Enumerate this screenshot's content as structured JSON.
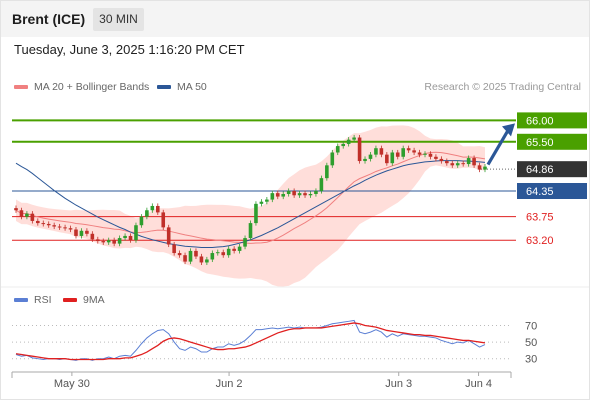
{
  "header": {
    "title": "Brent (ICE)",
    "timeframe": "30 MIN"
  },
  "datetime": "Tuesday, June 3, 2025 1:16:20 PM CET",
  "legend": {
    "ma20": {
      "label": "MA 20 + Bollinger Bands",
      "color": "#f08080"
    },
    "ma50": {
      "label": "MA 50",
      "color": "#2b5797"
    },
    "credit": "Research © 2025 Trading Central"
  },
  "rsi_legend": {
    "rsi": {
      "label": "RSI",
      "color": "#5b7fd4"
    },
    "ma9": {
      "label": "9MA",
      "color": "#e02020"
    }
  },
  "chart_data": [
    {
      "type": "candlestick",
      "ylim": [
        62.2,
        66.5
      ],
      "current_price": 64.86,
      "levels": [
        {
          "value": 66.0,
          "label": "66.00",
          "color": "#4aa000",
          "kind": "resistance"
        },
        {
          "value": 65.5,
          "label": "65.50",
          "color": "#4aa000",
          "kind": "resistance"
        },
        {
          "value": 64.86,
          "label": "64.86",
          "color": "#333333",
          "kind": "current"
        },
        {
          "value": 64.35,
          "label": "64.35",
          "color": "#2b5797",
          "kind": "pivot"
        },
        {
          "value": 63.75,
          "label": "63.75",
          "color": "#e02020",
          "kind": "support"
        },
        {
          "value": 63.2,
          "label": "63.20",
          "color": "#e02020",
          "kind": "support"
        }
      ],
      "colors": {
        "up": "#2e9e2e",
        "down": "#c0302a",
        "band": "#ffd8d4"
      },
      "close": [
        63.9,
        63.75,
        63.82,
        63.65,
        63.6,
        63.58,
        63.55,
        63.52,
        63.5,
        63.48,
        63.45,
        63.3,
        63.42,
        63.35,
        63.22,
        63.18,
        63.15,
        63.2,
        63.12,
        63.25,
        63.3,
        63.2,
        63.55,
        63.75,
        63.9,
        64.0,
        63.85,
        63.5,
        63.1,
        62.9,
        62.85,
        62.7,
        62.95,
        62.82,
        62.68,
        62.75,
        62.9,
        62.92,
        62.85,
        63.0,
        62.95,
        63.05,
        63.25,
        63.6,
        64.05,
        64.1,
        64.15,
        64.3,
        64.22,
        64.28,
        64.35,
        64.25,
        64.3,
        64.25,
        64.28,
        64.35,
        64.65,
        64.95,
        65.25,
        65.4,
        65.45,
        65.55,
        65.6,
        65.05,
        65.1,
        65.2,
        65.35,
        65.2,
        65.0,
        65.25,
        65.15,
        65.35,
        65.3,
        65.25,
        65.2,
        65.22,
        65.15,
        65.1,
        65.05,
        65.0,
        64.95,
        65.0,
        64.98,
        65.12,
        64.95,
        64.85,
        64.92
      ],
      "ma50": [
        65.0,
        64.92,
        64.85,
        64.76,
        64.66,
        64.56,
        64.46,
        64.36,
        64.27,
        64.18,
        64.1,
        64.02,
        63.95,
        63.88,
        63.81,
        63.74,
        63.68,
        63.62,
        63.56,
        63.5,
        63.45,
        63.39,
        63.34,
        63.29,
        63.25,
        63.21,
        63.18,
        63.15,
        63.12,
        63.1,
        63.08,
        63.06,
        63.05,
        63.04,
        63.03,
        63.03,
        63.03,
        63.04,
        63.05,
        63.07,
        63.1,
        63.13,
        63.17,
        63.21,
        63.26,
        63.31,
        63.37,
        63.43,
        63.49,
        63.56,
        63.63,
        63.7,
        63.77,
        63.84,
        63.91,
        63.98,
        64.05,
        64.12,
        64.19,
        64.26,
        64.33,
        64.4,
        64.47,
        64.53,
        64.6,
        64.66,
        64.72,
        64.77,
        64.82,
        64.86,
        64.9,
        64.94,
        64.97,
        64.99,
        65.01,
        65.03,
        65.04,
        65.05,
        65.06,
        65.06,
        65.06,
        65.06,
        65.05,
        65.05,
        65.04,
        65.03,
        65.02
      ]
    },
    {
      "type": "line",
      "ylim": [
        20,
        85
      ],
      "ticks": [
        70,
        50,
        30
      ],
      "tick_labels": [
        "70",
        "50",
        "30"
      ],
      "rsi": [
        35,
        33,
        34,
        31,
        30,
        29,
        30,
        30,
        29,
        30,
        29,
        28,
        30,
        30,
        28,
        30,
        30,
        32,
        30,
        33,
        34,
        33,
        40,
        48,
        55,
        60,
        64,
        65,
        60,
        50,
        42,
        40,
        44,
        42,
        38,
        38,
        42,
        44,
        44,
        48,
        46,
        48,
        52,
        58,
        65,
        65,
        66,
        67,
        66,
        67,
        68,
        67,
        68,
        67,
        67,
        67,
        68,
        70,
        72,
        73,
        74,
        75,
        76,
        62,
        60,
        62,
        65,
        62,
        56,
        60,
        57,
        60,
        59,
        58,
        57,
        57,
        56,
        55,
        52,
        50,
        48,
        50,
        49,
        52,
        48,
        44,
        47
      ],
      "ma9": [
        36,
        35,
        34,
        33,
        32,
        31,
        30,
        30,
        30,
        30,
        29,
        29,
        29,
        29,
        29,
        29,
        29,
        30,
        30,
        30,
        31,
        31,
        33,
        35,
        38,
        42,
        46,
        51,
        54,
        55,
        54,
        52,
        50,
        48,
        46,
        44,
        42,
        41,
        41,
        42,
        42,
        43,
        44,
        46,
        49,
        52,
        55,
        58,
        61,
        63,
        65,
        66,
        66,
        67,
        67,
        67,
        67,
        68,
        69,
        70,
        71,
        72,
        73,
        72,
        70,
        69,
        68,
        66,
        64,
        63,
        62,
        61,
        60,
        59,
        59,
        58,
        58,
        57,
        56,
        55,
        54,
        53,
        52,
        52,
        51,
        50,
        49
      ]
    }
  ],
  "x_axis": {
    "labels": [
      {
        "text": "May 30",
        "at": 0.12
      },
      {
        "text": "Jun 2",
        "at": 0.435
      },
      {
        "text": "Jun 3",
        "at": 0.775
      },
      {
        "text": "Jun 4",
        "at": 0.935
      }
    ]
  }
}
